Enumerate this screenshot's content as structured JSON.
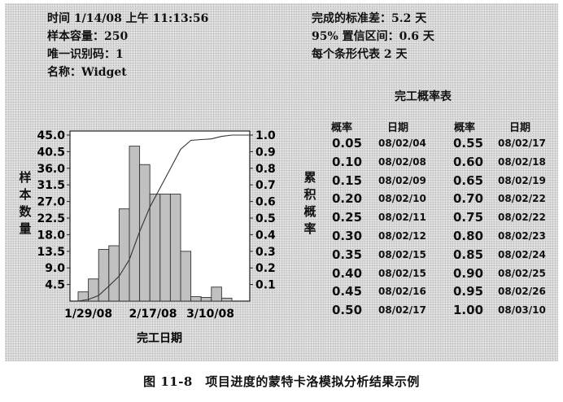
{
  "info": {
    "time": "时间 1/14/08 上午 11:13:56",
    "sample_size": "样本容量：250",
    "id": "唯一识别码：1",
    "name": "名称：Widget",
    "std_dev": "完成的标准差：5.2 天",
    "confidence": "95% 置信区间：0.6 天",
    "bar_each": "每个条形代表 2 天"
  },
  "table": {
    "title": "完工概率表",
    "headers": [
      "概率",
      "日期",
      "概率",
      "日期"
    ],
    "left": [
      {
        "p": "0.05",
        "d": "08/02/04"
      },
      {
        "p": "0.10",
        "d": "08/02/08"
      },
      {
        "p": "0.15",
        "d": "08/02/09"
      },
      {
        "p": "0.20",
        "d": "08/02/10"
      },
      {
        "p": "0.25",
        "d": "08/02/11"
      },
      {
        "p": "0.30",
        "d": "08/02/12"
      },
      {
        "p": "0.35",
        "d": "08/02/15"
      },
      {
        "p": "0.40",
        "d": "08/02/15"
      },
      {
        "p": "0.45",
        "d": "08/02/16"
      },
      {
        "p": "0.50",
        "d": "08/02/17"
      }
    ],
    "right": [
      {
        "p": "0.55",
        "d": "08/02/17"
      },
      {
        "p": "0.60",
        "d": "08/02/18"
      },
      {
        "p": "0.65",
        "d": "08/02/19"
      },
      {
        "p": "0.70",
        "d": "08/02/22"
      },
      {
        "p": "0.75",
        "d": "08/02/22"
      },
      {
        "p": "0.80",
        "d": "08/02/23"
      },
      {
        "p": "0.85",
        "d": "08/02/24"
      },
      {
        "p": "0.90",
        "d": "08/02/25"
      },
      {
        "p": "0.95",
        "d": "08/02/26"
      },
      {
        "p": "1.00",
        "d": "08/03/10"
      }
    ]
  },
  "chart_data": {
    "type": "bar",
    "xlabel": "完工日期",
    "ylabel": "样本数量",
    "y2label": "累积概率",
    "x_ticks": [
      "1/29/08",
      "2/17/08",
      "3/10/08"
    ],
    "y_ticks": [
      "4.5",
      "9.0",
      "13.5",
      "18.0",
      "22.5",
      "27.0",
      "31.5",
      "36.0",
      "40.5",
      "45.0"
    ],
    "y2_ticks": [
      "0.1",
      "0.2",
      "0.3",
      "0.4",
      "0.5",
      "0.6",
      "0.7",
      "0.8",
      "0.9",
      "1.0"
    ],
    "ylim": [
      0,
      45
    ],
    "y2lim": [
      0,
      1
    ],
    "values": [
      2.5,
      6,
      14,
      15,
      25,
      42,
      37,
      29,
      29,
      29,
      13.5,
      1.2,
      1,
      3.8,
      0.8
    ],
    "cumulative": {
      "x": [
        0,
        1,
        2,
        3,
        4,
        5,
        6,
        7,
        8,
        9,
        10,
        11,
        12,
        13,
        14,
        15
      ],
      "y": [
        0,
        0.01,
        0.034,
        0.09,
        0.15,
        0.25,
        0.418,
        0.566,
        0.682,
        0.798,
        0.914,
        0.968,
        0.973,
        0.977,
        0.992,
        1.0
      ]
    },
    "bar_color": "#c0c0c0",
    "plot_bg": "#ffffff"
  },
  "caption": "图 11-8　项目进度的蒙特卡洛模拟分析结果示例"
}
